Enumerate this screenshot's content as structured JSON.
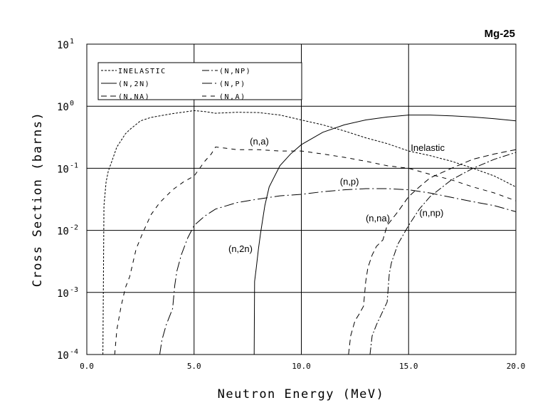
{
  "chart_data": {
    "type": "line",
    "title": "Mg-25",
    "xlabel": "Neutron Energy (MeV)",
    "ylabel": "Cross Section (barns)",
    "xlim": [
      0,
      20
    ],
    "ylim": [
      0.0001,
      10
    ],
    "yscale": "log",
    "grid": true,
    "legend_position": "top-left",
    "x_ticks": [
      {
        "value": 0,
        "label": "0.0"
      },
      {
        "value": 5,
        "label": "5.0"
      },
      {
        "value": 10,
        "label": "10.0"
      },
      {
        "value": 15,
        "label": "15.0"
      },
      {
        "value": 20,
        "label": "20.0"
      }
    ],
    "y_ticks": [
      {
        "value": 0.0001,
        "base": "10",
        "exp": "-4"
      },
      {
        "value": 0.001,
        "base": "10",
        "exp": "-3"
      },
      {
        "value": 0.01,
        "base": "10",
        "exp": "-2"
      },
      {
        "value": 0.1,
        "base": "10",
        "exp": "-1"
      },
      {
        "value": 1,
        "base": "10",
        "exp": "0"
      },
      {
        "value": 10,
        "base": "10",
        "exp": "1"
      }
    ],
    "series": [
      {
        "name": "INELASTIC",
        "dash": "3,2",
        "annotation": "Inelastic",
        "annotation_at": [
          15.1,
          0.19
        ],
        "x": [
          0.75,
          0.8,
          0.9,
          1.0,
          1.2,
          1.4,
          1.6,
          1.8,
          2.0,
          2.5,
          3.0,
          4.0,
          5.0,
          5.5,
          6.0,
          7.0,
          8.0,
          9.0,
          10.0,
          11.0,
          12.0,
          13.0,
          14.0,
          15.0,
          16.0,
          17.0,
          18.0,
          19.0,
          20.0
        ],
        "y": [
          0.0001,
          0.025,
          0.06,
          0.09,
          0.14,
          0.22,
          0.28,
          0.36,
          0.42,
          0.58,
          0.66,
          0.76,
          0.85,
          0.82,
          0.77,
          0.8,
          0.79,
          0.72,
          0.6,
          0.5,
          0.4,
          0.31,
          0.25,
          0.19,
          0.16,
          0.13,
          0.1,
          0.075,
          0.05
        ]
      },
      {
        "name": "(N,2N)",
        "dash": "",
        "annotation": "(n,2n)",
        "annotation_at": [
          6.6,
          0.0045
        ],
        "x": [
          7.8,
          7.82,
          7.9,
          8.0,
          8.1,
          8.3,
          8.5,
          9.0,
          9.5,
          10.0,
          11.0,
          12.0,
          13.0,
          14.0,
          15.0,
          16.0,
          17.0,
          18.0,
          19.0,
          20.0
        ],
        "y": [
          0.0001,
          0.0015,
          0.0025,
          0.005,
          0.009,
          0.025,
          0.05,
          0.11,
          0.17,
          0.24,
          0.38,
          0.5,
          0.6,
          0.67,
          0.72,
          0.72,
          0.7,
          0.67,
          0.63,
          0.58
        ]
      },
      {
        "name": "(N,NA)",
        "dash": "8,5",
        "annotation": "(n,na)",
        "annotation_at": [
          13.0,
          0.014
        ],
        "x": [
          12.2,
          12.3,
          12.5,
          12.7,
          12.9,
          13.0,
          13.1,
          13.3,
          13.5,
          13.8,
          14.0,
          14.5,
          15.0,
          15.5,
          16.0,
          17.0,
          18.0,
          19.0,
          20.0
        ],
        "y": [
          0.0001,
          0.0002,
          0.00035,
          0.00045,
          0.0006,
          0.0015,
          0.0025,
          0.004,
          0.0055,
          0.007,
          0.012,
          0.02,
          0.035,
          0.05,
          0.07,
          0.1,
          0.14,
          0.17,
          0.2
        ]
      },
      {
        "name": "(N,NP)",
        "dash": "10,3,2,3",
        "annotation": "(n,np)",
        "annotation_at": [
          15.5,
          0.017
        ],
        "x": [
          13.2,
          13.3,
          13.5,
          13.8,
          14.0,
          14.1,
          14.2,
          14.5,
          15.0,
          15.5,
          16.0,
          17.0,
          18.0,
          19.0,
          20.0
        ],
        "y": [
          0.0001,
          0.0002,
          0.0003,
          0.0005,
          0.0007,
          0.002,
          0.003,
          0.006,
          0.012,
          0.022,
          0.035,
          0.065,
          0.1,
          0.14,
          0.18
        ]
      },
      {
        "name": "(N,P)",
        "dash": "14,4,2,4",
        "annotation": "(n,p)",
        "annotation_at": [
          11.8,
          0.054
        ],
        "x": [
          3.4,
          3.5,
          3.7,
          4.0,
          4.1,
          4.2,
          4.4,
          4.7,
          5.0,
          5.5,
          6.0,
          7.0,
          8.0,
          9.0,
          10.0,
          11.0,
          12.0,
          13.0,
          14.0,
          15.0,
          16.0,
          17.0,
          18.0,
          19.0,
          20.0
        ],
        "y": [
          0.0001,
          0.00017,
          0.0003,
          0.00055,
          0.0013,
          0.0022,
          0.004,
          0.0075,
          0.012,
          0.017,
          0.022,
          0.028,
          0.032,
          0.036,
          0.038,
          0.042,
          0.045,
          0.047,
          0.047,
          0.045,
          0.04,
          0.034,
          0.029,
          0.025,
          0.02
        ]
      },
      {
        "name": "(N,A)",
        "dash": "6,6",
        "annotation": "(n,a)",
        "annotation_at": [
          7.6,
          0.24
        ],
        "x": [
          1.3,
          1.4,
          1.6,
          1.8,
          2.0,
          2.3,
          2.6,
          3.0,
          3.4,
          4.0,
          4.5,
          5.0,
          5.5,
          5.8,
          6.0,
          6.5,
          7.0,
          8.0,
          9.0,
          10.0,
          11.0,
          12.0,
          13.0,
          14.0,
          15.0,
          16.0,
          17.0,
          18.0,
          19.0,
          20.0
        ],
        "y": [
          0.0001,
          0.00025,
          0.0006,
          0.0012,
          0.0018,
          0.005,
          0.009,
          0.018,
          0.028,
          0.045,
          0.06,
          0.075,
          0.13,
          0.17,
          0.22,
          0.21,
          0.2,
          0.2,
          0.19,
          0.19,
          0.17,
          0.15,
          0.13,
          0.11,
          0.1,
          0.08,
          0.065,
          0.05,
          0.04,
          0.03
        ]
      }
    ]
  }
}
